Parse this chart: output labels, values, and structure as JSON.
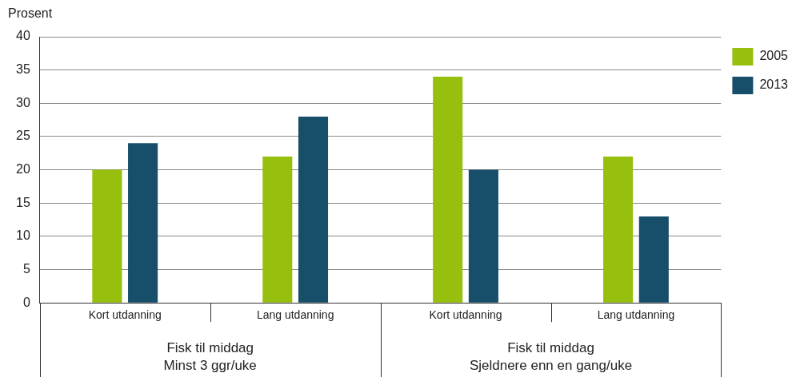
{
  "chart_data": {
    "type": "bar",
    "ylabel": "Prosent",
    "categories": [
      "Kort utdanning",
      "Lang utdanning",
      "Kort utdanning",
      "Lang utdanning"
    ],
    "series": [
      {
        "name": "2005",
        "color": "#97bf0d",
        "values": [
          20,
          22,
          34,
          22
        ]
      },
      {
        "name": "2013",
        "color": "#174e69",
        "values": [
          24,
          28,
          20,
          13
        ]
      }
    ],
    "ylim": [
      0,
      40
    ],
    "yticks": [
      0,
      5,
      10,
      15,
      20,
      25,
      30,
      35,
      40
    ],
    "grid": "y",
    "legend": "top right",
    "annotations": [
      "Fisk til middag\nMinst 3 ggr/uke",
      "Fisk til middag\nSjeldnere enn en gang/uke"
    ]
  }
}
